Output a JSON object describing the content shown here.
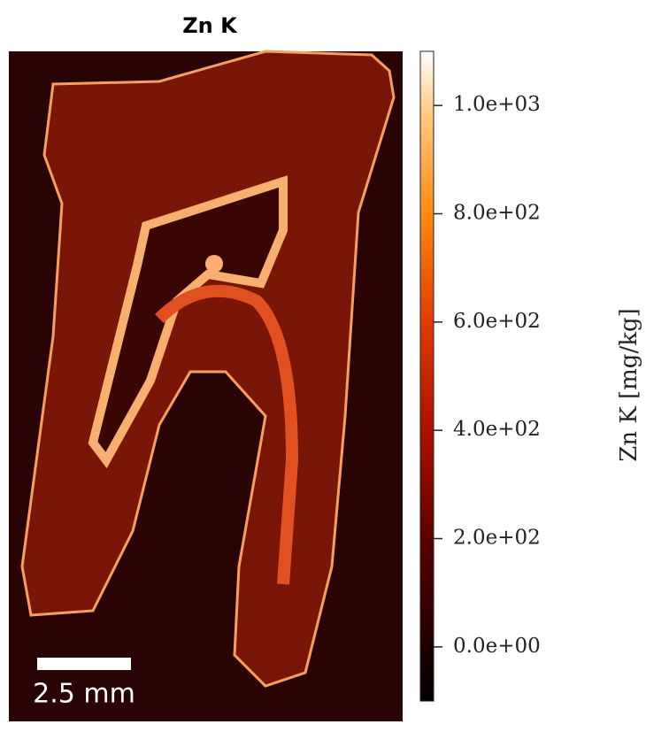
{
  "chart_data": {
    "type": "heatmap",
    "title": "Zn K",
    "colorbar_label": "Zn K  [mg/kg]",
    "clim": [
      -100,
      1100
    ],
    "cticks": [
      {
        "value": 0,
        "label": "0.0e+00"
      },
      {
        "value": 200,
        "label": "2.0e+02"
      },
      {
        "value": 400,
        "label": "4.0e+02"
      },
      {
        "value": 600,
        "label": "6.0e+02"
      },
      {
        "value": 800,
        "label": "8.0e+02"
      },
      {
        "value": 1000,
        "label": "1.0e+03"
      }
    ],
    "scale_bar_label": "2.5 mm"
  }
}
